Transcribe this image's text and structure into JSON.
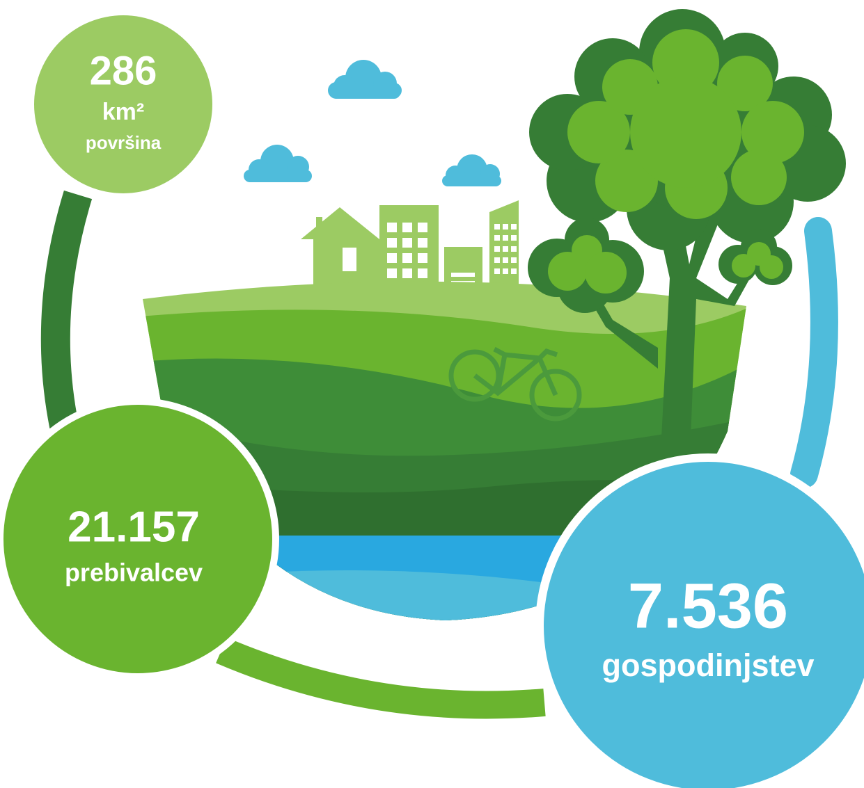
{
  "stats": [
    {
      "value": "286",
      "unit": "km²",
      "label": "površina"
    },
    {
      "value": "21.157",
      "label": "prebivalcev"
    },
    {
      "value": "7.536",
      "label": "gospodinjstev"
    }
  ]
}
